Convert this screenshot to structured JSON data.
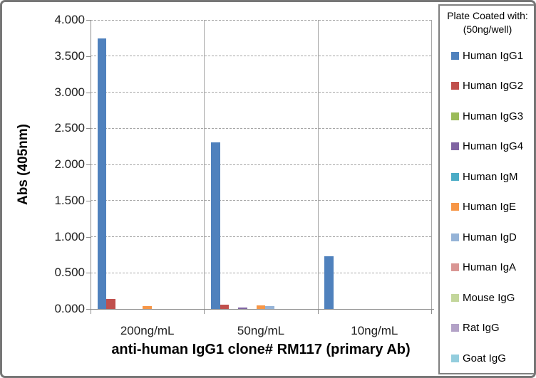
{
  "chart_data": {
    "type": "bar",
    "title": "",
    "xlabel": "anti-human IgG1 clone# RM117 (primary Ab)",
    "ylabel": "Abs (405nm)",
    "categories": [
      "200ng/mL",
      "50ng/mL",
      "10ng/mL"
    ],
    "series": [
      {
        "name": "Human IgG1",
        "color": "#4F81BD",
        "values": [
          3.74,
          2.31,
          0.73
        ]
      },
      {
        "name": "Human IgG2",
        "color": "#C0504D",
        "values": [
          0.14,
          0.06,
          0
        ]
      },
      {
        "name": "Human IgG3",
        "color": "#9BBB59",
        "values": [
          0,
          0,
          0
        ]
      },
      {
        "name": "Human IgG4",
        "color": "#8064A2",
        "values": [
          0,
          0.015,
          0
        ]
      },
      {
        "name": "Human IgM",
        "color": "#4BACC6",
        "values": [
          0,
          0,
          0
        ]
      },
      {
        "name": "Human IgE",
        "color": "#F79646",
        "values": [
          0.035,
          0.045,
          0
        ]
      },
      {
        "name": "Human IgD",
        "color": "#95B3D7",
        "values": [
          0,
          0.035,
          0
        ]
      },
      {
        "name": "Human IgA",
        "color": "#D99694",
        "values": [
          0,
          0,
          0
        ]
      },
      {
        "name": "Mouse IgG",
        "color": "#C3D69B",
        "values": [
          0,
          0,
          0
        ]
      },
      {
        "name": "Rat IgG",
        "color": "#B3A2C7",
        "values": [
          0,
          0,
          0
        ]
      },
      {
        "name": "Goat IgG",
        "color": "#93CDDD",
        "values": [
          0,
          0,
          0
        ]
      }
    ],
    "ylim": [
      0,
      4
    ],
    "ytick_step": 0.5,
    "ytick_labels": [
      "0.000",
      "0.500",
      "1.000",
      "1.500",
      "2.000",
      "2.500",
      "3.000",
      "3.500",
      "4.000"
    ],
    "grid": "horizontal-dashed",
    "legend_position": "right",
    "legend_title": [
      "Plate Coated with:",
      "(50ng/well)"
    ]
  },
  "style_colors": {
    "gridline": "#a6a6a6",
    "axis": "#8c8c8c",
    "frame_border": "#767676",
    "legend_border": "#808080",
    "text": "#1f1f1f"
  }
}
